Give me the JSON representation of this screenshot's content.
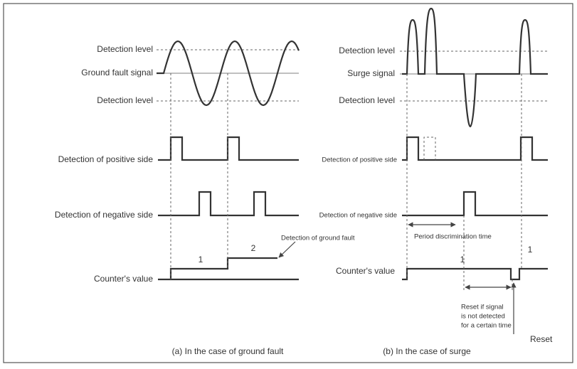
{
  "left": {
    "detection_level_upper": "Detection level",
    "signal": "Ground fault signal",
    "detection_level_lower": "Detection level",
    "positive": "Detection of positive side",
    "negative": "Detection of negative side",
    "counter": "Counter's value",
    "count_labels": [
      "1",
      "2"
    ],
    "annotation": "Detection of ground fault",
    "caption": "(a) In the case of ground fault"
  },
  "right": {
    "detection_level_upper": "Detection level",
    "signal": "Surge signal",
    "detection_level_lower": "Detection level",
    "positive": "Detection of positive side",
    "negative": "Detection of negative side",
    "counter": "Counter's value",
    "count_labels": [
      "1",
      "1"
    ],
    "period": "Period discrimination time",
    "reset_note": [
      "Reset if signal",
      "is not detected",
      "for a certain time"
    ],
    "reset": "Reset",
    "caption": "(b) In the case of surge"
  }
}
